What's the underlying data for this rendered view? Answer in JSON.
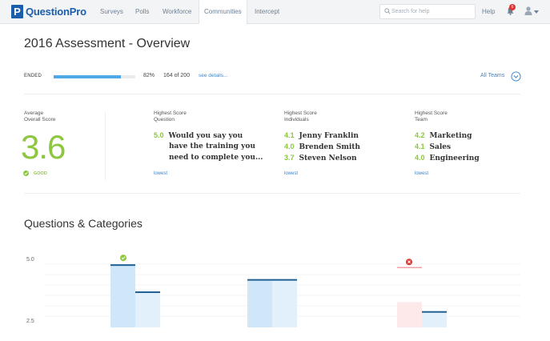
{
  "header": {
    "logo_letter": "P",
    "logo_text": "QuestionPro",
    "nav": [
      "Surveys",
      "Polls",
      "Workforce",
      "Communities",
      "Intercept"
    ],
    "active_nav": "Communities",
    "search_placeholder": "Search for help",
    "help_label": "Help",
    "notification_count": "6"
  },
  "page": {
    "title": "2016 Assessment - Overview",
    "status": "ENDED",
    "progress_percent": 82,
    "progress_label": "82%",
    "count_label": "164 of 200",
    "details_link": "see details...",
    "teams_dropdown": "All Teams"
  },
  "stats": {
    "average": {
      "label_line1": "Average",
      "label_line2": "Overall Score",
      "value": "3.6",
      "rating": "GOOD"
    },
    "question": {
      "label_line1": "Highest Score",
      "label_line2": "Question",
      "score": "5.0",
      "lines": [
        "Would you say you",
        "have the training you",
        "need to complete you..."
      ],
      "link": "lowest"
    },
    "individuals": {
      "label_line1": "Highest Score",
      "label_line2": "Individuals",
      "rows": [
        {
          "score": "4.1",
          "name": "Jenny Franklin"
        },
        {
          "score": "4.0",
          "name": "Brenden Smith"
        },
        {
          "score": "3.7",
          "name": "Steven Nelson"
        }
      ],
      "link": "lowest"
    },
    "team": {
      "label_line1": "Highest Score",
      "label_line2": "Team",
      "rows": [
        {
          "score": "4.2",
          "name": "Marketing"
        },
        {
          "score": "4.1",
          "name": "Sales"
        },
        {
          "score": "4.0",
          "name": "Engineering"
        }
      ],
      "link": "lowest"
    }
  },
  "questions_section": {
    "title": "Questions & Categories",
    "y_ticks": [
      "5.0",
      "2.5"
    ]
  },
  "chart_data": {
    "type": "bar",
    "title": "",
    "yticks": [
      5.0,
      2.5
    ],
    "ylim": [
      2.5,
      5.0
    ],
    "series": [
      {
        "values": [
          4.8,
          3.7,
          4.2,
          4.2,
          3.3,
          2.9
        ]
      }
    ],
    "markers": [
      {
        "bar_index": 0,
        "kind": "good"
      },
      {
        "bar_index": 4,
        "kind": "bad",
        "target": 4.7
      }
    ]
  },
  "colors": {
    "brand": "#1b5eab",
    "accent_green": "#8dc63f",
    "link_blue": "#3d85c6",
    "progress_blue": "#4ea9e6",
    "bad_red": "#e0332f"
  }
}
